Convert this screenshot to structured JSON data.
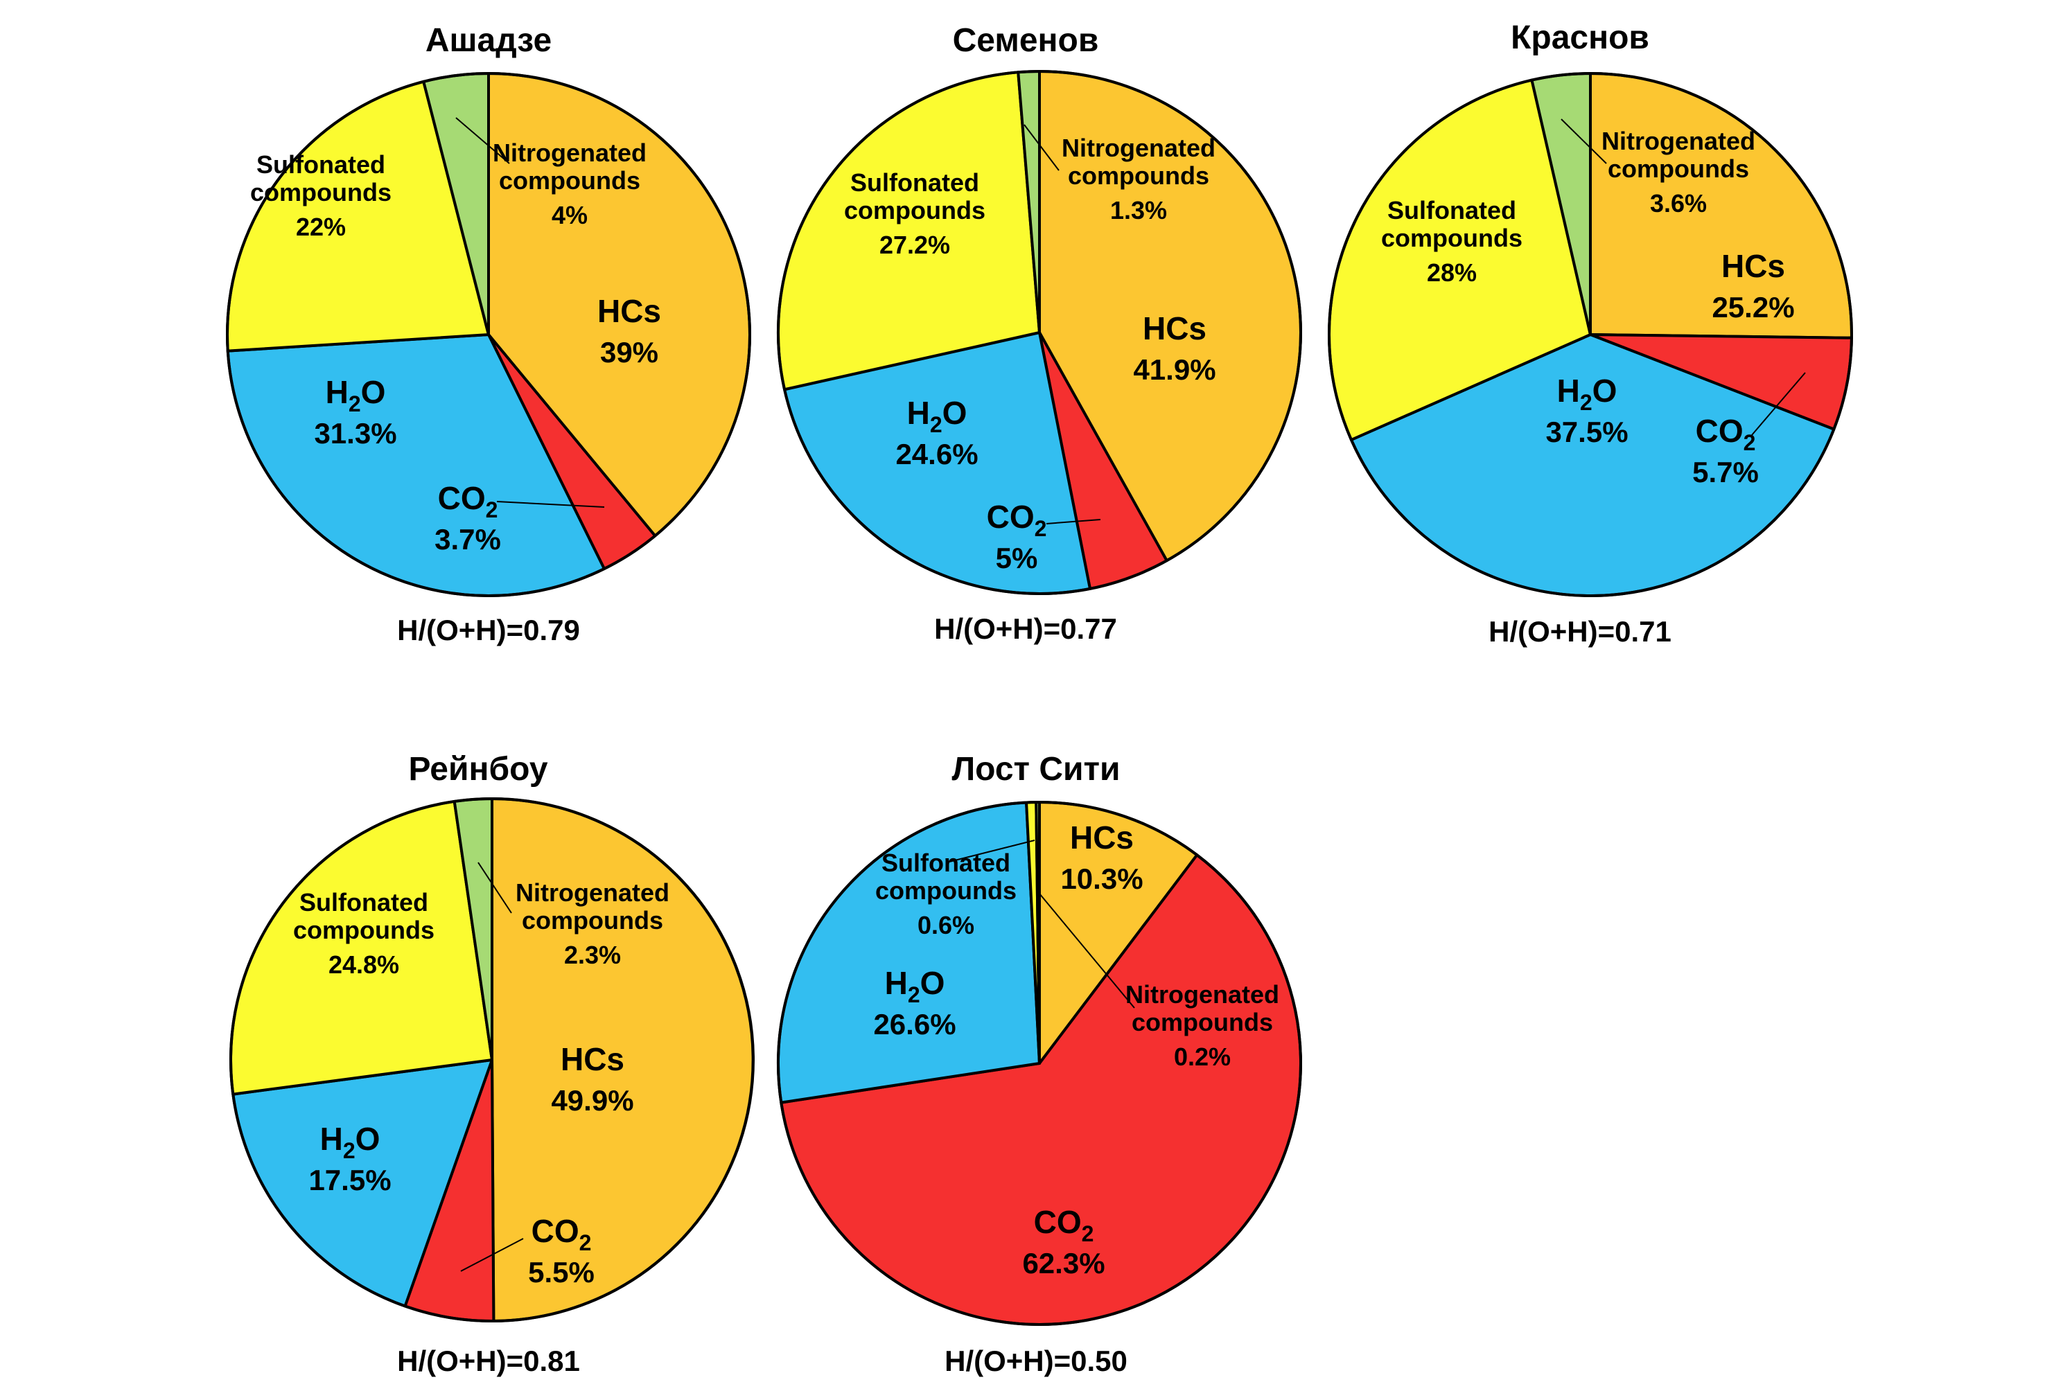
{
  "colors": {
    "HCs": "#fcc631",
    "CO2": "#f53030",
    "H2O": "#33bef0",
    "Sulfonated compounds": "#fbfb30",
    "Nitrogenated compounds": "#a6da74",
    "outline": "#000000"
  },
  "chart_data": [
    {
      "type": "pie",
      "title": "Ашадзе",
      "ratio_label": "H/(O+H)=0.79",
      "slices": [
        {
          "key": "HCs",
          "name": "HCs",
          "pct": "39%",
          "value": 39
        },
        {
          "key": "CO2",
          "name": "CO",
          "sub": "2",
          "pct": "3.7%",
          "value": 3.7
        },
        {
          "key": "H2O",
          "name": "H",
          "sub": "2",
          "name2": "O",
          "pct": "31.3%",
          "value": 31.3
        },
        {
          "key": "Sulfonated compounds",
          "name": "Sulfonated",
          "name2": "compounds",
          "pct": "22%",
          "value": 22
        },
        {
          "key": "Nitrogenated compounds",
          "name": "Nitrogenated",
          "name2": "compounds",
          "pct": "4%",
          "value": 4
        }
      ]
    },
    {
      "type": "pie",
      "title": "Семенов",
      "ratio_label": "H/(O+H)=0.77",
      "slices": [
        {
          "key": "HCs",
          "name": "HCs",
          "pct": "41.9%",
          "value": 41.9
        },
        {
          "key": "CO2",
          "name": "CO",
          "sub": "2",
          "pct": "5%",
          "value": 5
        },
        {
          "key": "H2O",
          "name": "H",
          "sub": "2",
          "name2": "O",
          "pct": "24.6%",
          "value": 24.6
        },
        {
          "key": "Sulfonated compounds",
          "name": "Sulfonated",
          "name2": "compounds",
          "pct": "27.2%",
          "value": 27.2
        },
        {
          "key": "Nitrogenated compounds",
          "name": "Nitrogenated",
          "name2": "compounds",
          "pct": "1.3%",
          "value": 1.3
        }
      ]
    },
    {
      "type": "pie",
      "title": "Краснов",
      "ratio_label": "H/(O+H)=0.71",
      "slices": [
        {
          "key": "HCs",
          "name": "HCs",
          "pct": "25.2%",
          "value": 25.2
        },
        {
          "key": "CO2",
          "name": "CO",
          "sub": "2",
          "pct": "5.7%",
          "value": 5.7
        },
        {
          "key": "H2O",
          "name": "H",
          "sub": "2",
          "name2": "O",
          "pct": "37.5%",
          "value": 37.5
        },
        {
          "key": "Sulfonated compounds",
          "name": "Sulfonated",
          "name2": "compounds",
          "pct": "28%",
          "value": 28
        },
        {
          "key": "Nitrogenated compounds",
          "name": "Nitrogenated",
          "name2": "compounds",
          "pct": "3.6%",
          "value": 3.6
        }
      ]
    },
    {
      "type": "pie",
      "title": "Рейнбоу",
      "ratio_label": "H/(O+H)=0.81",
      "slices": [
        {
          "key": "HCs",
          "name": "HCs",
          "pct": "49.9%",
          "value": 49.9
        },
        {
          "key": "CO2",
          "name": "CO",
          "sub": "2",
          "pct": "5.5%",
          "value": 5.5
        },
        {
          "key": "H2O",
          "name": "H",
          "sub": "2",
          "name2": "O",
          "pct": "17.5%",
          "value": 17.5
        },
        {
          "key": "Sulfonated compounds",
          "name": "Sulfonated",
          "name2": "compounds",
          "pct": "24.8%",
          "value": 24.8
        },
        {
          "key": "Nitrogenated compounds",
          "name": "Nitrogenated",
          "name2": "compounds",
          "pct": "2.3%",
          "value": 2.3
        }
      ]
    },
    {
      "type": "pie",
      "title": "Лост Сити",
      "ratio_label": "H/(O+H)=0.50",
      "slices": [
        {
          "key": "HCs",
          "name": "HCs",
          "pct": "10.3%",
          "value": 10.3
        },
        {
          "key": "CO2",
          "name": "CO",
          "sub": "2",
          "pct": "62.3%",
          "value": 62.3
        },
        {
          "key": "H2O",
          "name": "H",
          "sub": "2",
          "name2": "O",
          "pct": "26.6%",
          "value": 26.6
        },
        {
          "key": "Sulfonated compounds",
          "name": "Sulfonated",
          "name2": "compounds",
          "pct": "0.6%",
          "value": 0.6
        },
        {
          "key": "Nitrogenated compounds",
          "name": "Nitrogenated",
          "name2": "compounds",
          "pct": "0.2%",
          "value": 0.2
        }
      ]
    }
  ]
}
